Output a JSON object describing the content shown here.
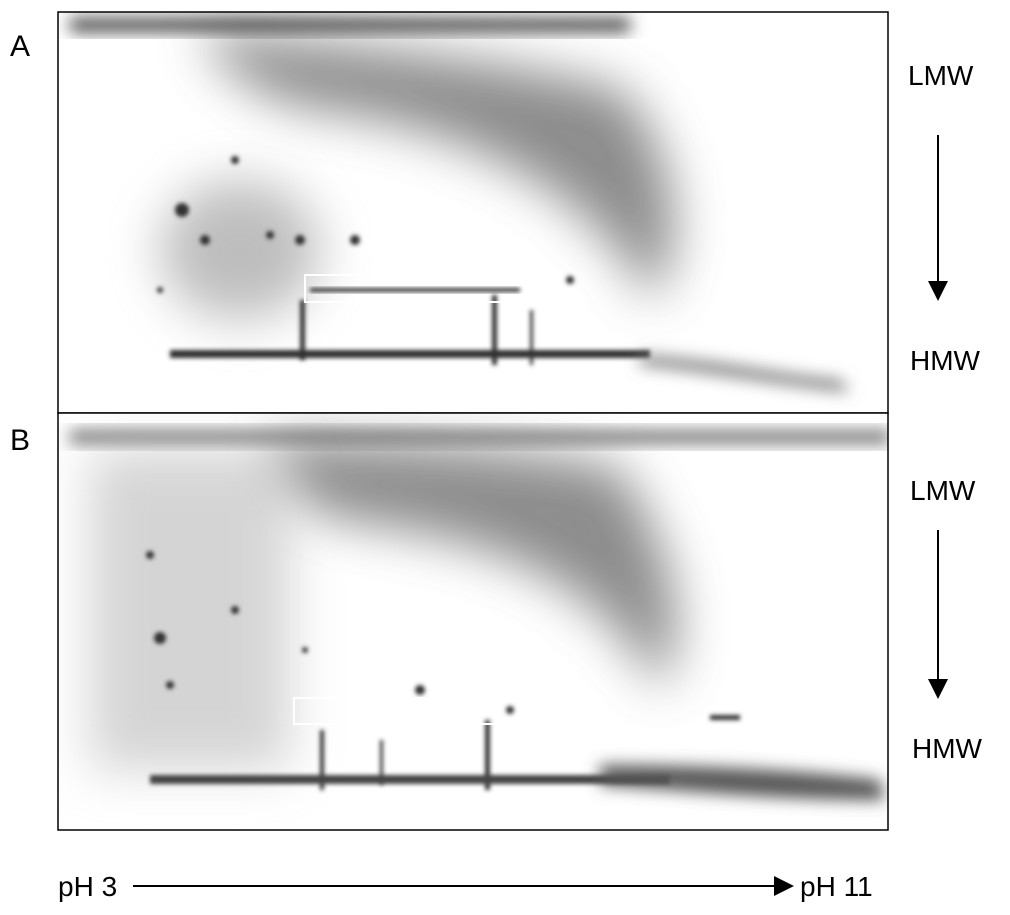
{
  "panels": [
    {
      "label": "A",
      "top_label": "LMW",
      "bottom_label": "HMW"
    },
    {
      "label": "B",
      "top_label": "LMW",
      "bottom_label": "HMW"
    }
  ],
  "axis": {
    "start": "pH 3",
    "end": "pH 11"
  }
}
